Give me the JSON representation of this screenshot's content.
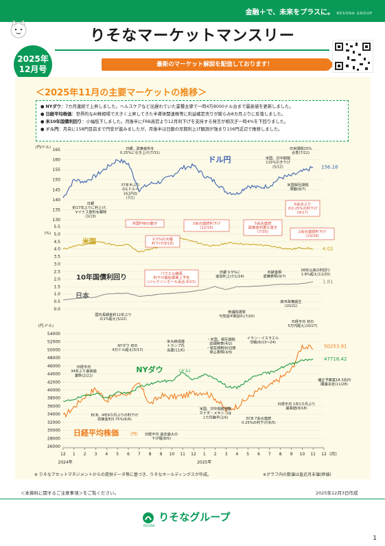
{
  "header": {
    "slogan": "金融＋で、未来をプラスに。",
    "group": "RESONA GROUP",
    "title": "りそなマーケットマンスリー",
    "issue_year": "2025年",
    "issue_month": "12月号",
    "banner": "最新のマーケット解説を配信しております！"
  },
  "section_title": "＜2025年11月の主要マーケットの推移＞",
  "summary": [
    {
      "label": "NYダウ",
      "text": "：7カ月連続で上昇しました。ヘルスケアなど出遅れていた業種主導で一時4万8000ドル台まで最高値を更新しました。"
    },
    {
      "label": "日経平均株価",
      "text": "：世界的なAI株相場で大きく上昇してきた半導体関連株等に利益確定売りが膨らみ8カ月ぶりに反落しました。"
    },
    {
      "label": "米10年国債利回り",
      "text": "：小幅低下しました。月後半にFRB高官より12月利下げを支持する発言が相次ぎ一時4%を下回りました。"
    },
    {
      "label": "ドル円",
      "text": "：月央に158円目前まで円安が進みましたが、月後半は日銀の早期利上げ観測が強まり156円近辺で推移しました。"
    }
  ],
  "chart_data": [
    {
      "type": "line",
      "title": "ドル円",
      "ylabel": "(円/ドル)",
      "ylim": [
        130,
        165
      ],
      "yticks": [
        130,
        135,
        140,
        145,
        150,
        155,
        160,
        165
      ],
      "series": [
        {
          "name": "ドル円",
          "color": "#3a5fb0",
          "x": [
            0,
            1,
            2,
            3,
            4,
            5,
            6,
            7,
            8,
            9,
            10,
            11,
            12,
            13,
            14,
            15,
            16,
            17,
            18,
            19,
            20,
            21,
            22,
            23
          ],
          "values": [
            141,
            150,
            149,
            152,
            156,
            160,
            158,
            145,
            148,
            149,
            152,
            156,
            157,
            152,
            149,
            144,
            143,
            147,
            146,
            147,
            151,
            152,
            154,
            156.18
          ]
        }
      ],
      "end_label": "156.18",
      "annotations": [
        "日銀\n約17年ぶりに利上げ、\nマイナス金利を解除\n(3/19)",
        "日銀、政策金利を\n0.25%に引き上げ(7/31)",
        "37年半ぶり\nの1ドル＝\n161円台\n(7/1)",
        "米国、対中関税\n115%引き下げ\n(5/12)",
        "日米関税15%\n合意(7/22)",
        "米国相互関税\n発動(8/7)"
      ]
    },
    {
      "type": "line",
      "ylabel": "(%)",
      "ylim": [
        0.0,
        5.5
      ],
      "yticks": [
        0.0,
        0.5,
        1.0,
        1.5,
        2.0,
        2.5,
        3.0,
        3.5,
        4.0,
        4.5,
        5.0,
        5.5
      ],
      "label": "10年国債利回り",
      "series": [
        {
          "name": "米国",
          "color": "#c8a018",
          "x": [
            0,
            1,
            2,
            3,
            4,
            5,
            6,
            7,
            8,
            9,
            10,
            11,
            12,
            13,
            14,
            15,
            16,
            17,
            18,
            19,
            20,
            21,
            22,
            23
          ],
          "values": [
            4.0,
            4.2,
            4.3,
            4.5,
            4.4,
            4.2,
            4.3,
            3.8,
            4.0,
            4.2,
            4.6,
            4.7,
            4.5,
            4.3,
            4.2,
            4.4,
            4.4,
            4.3,
            4.3,
            4.2,
            4.1,
            4.0,
            4.1,
            4.02
          ]
        },
        {
          "name": "日本",
          "color": "#888888",
          "x": [
            0,
            1,
            2,
            3,
            4,
            5,
            6,
            7,
            8,
            9,
            10,
            11,
            12,
            13,
            14,
            15,
            16,
            17,
            18,
            19,
            20,
            21,
            22,
            23
          ],
          "values": [
            0.6,
            0.7,
            0.75,
            0.8,
            1.0,
            1.05,
            1.05,
            0.85,
            0.9,
            1.0,
            1.05,
            1.1,
            1.2,
            1.3,
            1.5,
            1.3,
            1.5,
            1.5,
            1.55,
            1.6,
            1.65,
            1.65,
            1.7,
            1.81
          ]
        }
      ],
      "end_labels": [
        "4.02",
        "1.81"
      ],
      "event_boxes": [
        "米国FRBの動き",
        "0.5%の大幅\n利下げ(9/18)",
        "3会合連続利下げ\n(12/18)",
        "5会合連続\n政策金利据え置き\n(7/30)",
        "6会合ぶり\nの0.25%の利下げ\n(9/17)",
        "2会合連続利下げ\n(10/29)",
        "パウエル議長\n利下げ開始事実上予告\n(ジャクソンホール会合 8/23)"
      ],
      "annotations": [
        "日銀 0.5%に\n追加利上げ(1/24)",
        "石破首相\n退陣表明(9/7)",
        "08年以来の利回り\n1.8%超え(11/20)",
        "国内長期金利12年ぶり\nの1%超え(5/22)",
        "参議院選挙\n与党過半数割れ(7/20)",
        "高市政権誕生\n(10/21)"
      ]
    },
    {
      "type": "line",
      "ylabel": "(円,ドル)",
      "ylim": [
        26000,
        54000
      ],
      "yticks": [
        26000,
        28000,
        30000,
        32000,
        34000,
        36000,
        38000,
        40000,
        42000,
        44000,
        46000,
        48000,
        50000,
        52000,
        54000
      ],
      "x_tick_labels": [
        "12",
        "1",
        "2",
        "3",
        "4",
        "5",
        "6",
        "7",
        "8",
        "9",
        "10",
        "11",
        "12",
        "1",
        "2",
        "3",
        "4",
        "5",
        "6",
        "7",
        "8",
        "9",
        "10",
        "11",
        "12"
      ],
      "x_unit": "(月)",
      "x_year_labels": [
        "2024年",
        "2025年"
      ],
      "series": [
        {
          "name": "NYダウ",
          "color": "#1e9a46",
          "x": [
            0,
            1,
            2,
            3,
            4,
            5,
            6,
            7,
            8,
            9,
            10,
            11,
            12,
            13,
            14,
            15,
            16,
            17,
            18,
            19,
            20,
            21,
            22,
            23
          ],
          "values": [
            37000,
            37800,
            38500,
            39300,
            38000,
            39500,
            39100,
            40800,
            41500,
            42200,
            42300,
            44500,
            42500,
            43800,
            43000,
            41000,
            40500,
            42500,
            44000,
            44300,
            45500,
            46500,
            47500,
            47716.42
          ]
        },
        {
          "name": "日経平均株価",
          "color": "#ee7b1c",
          "x": [
            0,
            1,
            2,
            3,
            4,
            5,
            6,
            7,
            8,
            9,
            10,
            11,
            12,
            13,
            14,
            15,
            16,
            17,
            18,
            19,
            20,
            21,
            22,
            23
          ],
          "values": [
            33400,
            35800,
            38500,
            40300,
            37500,
            38800,
            39200,
            41500,
            36500,
            38600,
            38300,
            38500,
            39300,
            39500,
            38000,
            35000,
            36000,
            38000,
            40000,
            41000,
            43000,
            45000,
            51000,
            50253.91
          ]
        }
      ],
      "end_labels": [
        "50253.91",
        "47716.42"
      ],
      "label_dow": "NYダウ",
      "label_dow_unit": "(ドル)",
      "label_nikkei": "日経平均株価",
      "label_nikkei_unit": "(円)",
      "annotations": [
        "日経平均\n34年ぶり最高値\n更新(2/22)",
        "NYダウ 初の\n4万ドル超え(5/17)",
        "米大統領選\nトランプ氏\n当選(11/6)",
        "・米国、相互関税\n詳細発表(4/2)\n・相互関税90日間\n停止表明(4/9)",
        "イラン・イスラエル\n交戦(6/13〜24)",
        "日経平均 初の\n5万円超え(10/27)",
        "補正予算案18.3兆円\n閣議決定(11/28)",
        "日経平均 1年1カ月ぶり\n最高値(8/18)",
        "ECB 7会合連続\n0.25%の利下げ(6/5)",
        "米国、対中関税発動\nカナダ・メキシコは\n1カ月猶予(2/4)",
        "日経平均 過去最大の\n下げ幅(8/5)",
        "ECB、4年9カ月ぶりの利下げ\n政策金利3.75%(6/6)"
      ]
    }
  ],
  "footnotes": {
    "source": "※ りそなアセットマネジメントからの提供データ等に基づき、りそなホールディングスが作成。",
    "values_note": "※グラフ内の数値は直近月末値(終値)"
  },
  "footer": {
    "caution": "＜本資料に関するご注意事項＞をご覧ください。",
    "date": "2025年12月3日作成",
    "logo_text": "りそなグループ",
    "logo_sub": "RESONA",
    "page": "1"
  },
  "colors": {
    "brand_green": "#0a9a58",
    "accent_orange": "#ee7b1c",
    "usd_jpy": "#3a5fb0",
    "us_yield": "#c8a018",
    "jp_yield": "#888888",
    "dow": "#1e9a46",
    "nikkei": "#ee7b1c"
  }
}
